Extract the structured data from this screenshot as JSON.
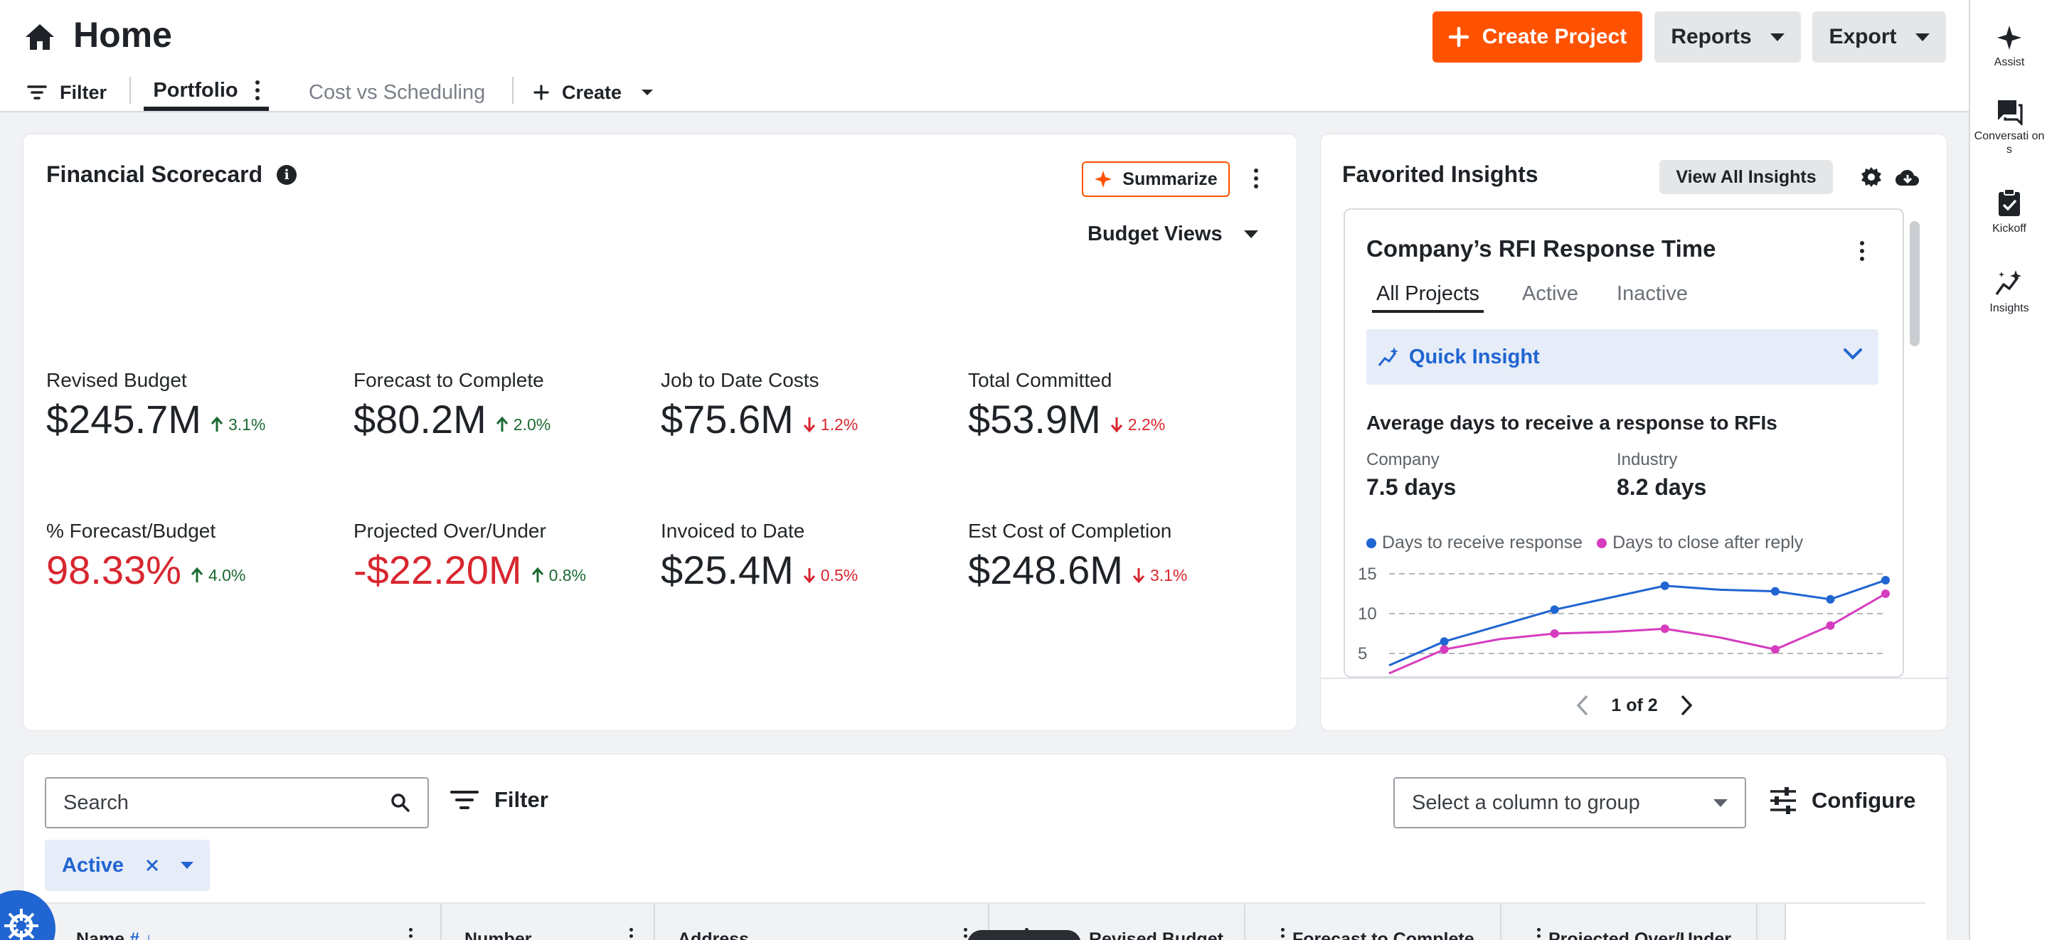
{
  "header": {
    "title": "Home",
    "create_project": "Create Project",
    "reports": "Reports",
    "export": "Export",
    "tabs": {
      "filter": "Filter",
      "portfolio": "Portfolio",
      "cost_vs_scheduling": "Cost vs Scheduling",
      "create": "Create"
    }
  },
  "rail": [
    {
      "label": "Assist",
      "icon": "sparkle-icon"
    },
    {
      "label": "Conversati ons",
      "icon": "chat-icon"
    },
    {
      "label": "Kickoff",
      "icon": "clipboard-check-icon"
    },
    {
      "label": "Insights",
      "icon": "insights-icon"
    }
  ],
  "scorecard": {
    "title": "Financial Scorecard",
    "summarize": "Summarize",
    "budget_views": "Budget Views",
    "metrics": [
      {
        "label": "Revised Budget",
        "value": "$245.7M",
        "trend": "3.1%",
        "dir": "up"
      },
      {
        "label": "Forecast to Complete",
        "value": "$80.2M",
        "trend": "2.0%",
        "dir": "up"
      },
      {
        "label": "Job to Date Costs",
        "value": "$75.6M",
        "trend": "1.2%",
        "dir": "down"
      },
      {
        "label": "Total Committed",
        "value": "$53.9M",
        "trend": "2.2%",
        "dir": "down"
      },
      {
        "label": "% Forecast/Budget",
        "value": "98.33%",
        "trend": "4.0%",
        "dir": "up"
      },
      {
        "label": "Projected Over/Under",
        "value": "-$22.20M",
        "trend": "0.8%",
        "dir": "up"
      },
      {
        "label": "Invoiced to Date",
        "value": "$25.4M",
        "trend": "0.5%",
        "dir": "down"
      },
      {
        "label": "Est Cost of Completion",
        "value": "$248.6M",
        "trend": "3.1%",
        "dir": "down"
      }
    ]
  },
  "insights": {
    "title": "Favorited Insights",
    "view_all": "View All Insights",
    "card_title": "Company’s RFI Response Time",
    "tabs": [
      "All Projects",
      "Active",
      "Inactive"
    ],
    "quick_insight": "Quick Insight",
    "avg_title": "Average days to receive a response to RFIs",
    "company_label": "Company",
    "company_value": "7.5 days",
    "industry_label": "Industry",
    "industry_value": "8.2 days",
    "pager": "1 of 2",
    "colors": {
      "blue": "#2065d1",
      "magenta": "#d63cbf"
    }
  },
  "chart_data": {
    "type": "line",
    "yticks": [
      "15",
      "10",
      "5"
    ],
    "ylim": [
      0,
      16
    ],
    "x": [
      1,
      2,
      3,
      4,
      5,
      6,
      7,
      8,
      9,
      10
    ],
    "series": [
      {
        "name": "Days to receive response",
        "color": "#2065d1",
        "values": [
          3.5,
          6.5,
          8.5,
          10.5,
          12,
          13.5,
          13,
          12.8,
          11.8,
          14.2
        ]
      },
      {
        "name": "Days to close after reply",
        "color": "#d63cbf",
        "values": [
          2.5,
          5.5,
          6.8,
          7.5,
          7.7,
          8.1,
          7,
          5.5,
          8.5,
          12.5
        ]
      }
    ]
  },
  "table": {
    "search_placeholder": "Search",
    "filter": "Filter",
    "group_placeholder": "Select a column to group",
    "configure": "Configure",
    "active_chip": "Active",
    "columns": [
      "Name",
      "Number",
      "Address",
      "Revised Budget",
      "Forecast to Complete",
      "Projected Over/Under"
    ],
    "name_sort": "#"
  }
}
